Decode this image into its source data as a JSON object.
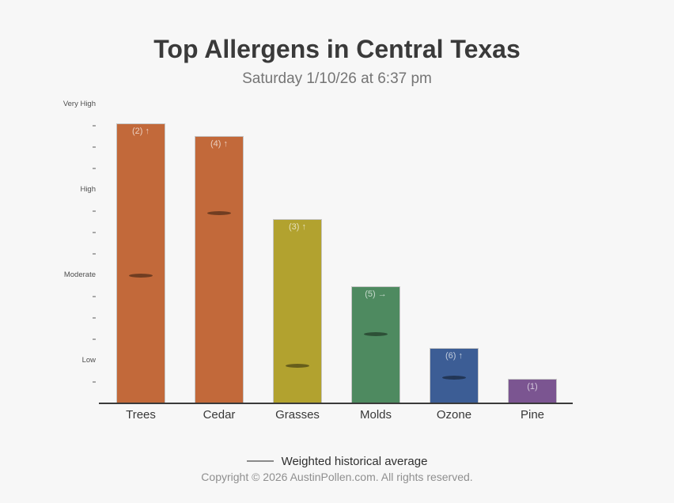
{
  "header": {
    "title": "Top Allergens in Central Texas",
    "subtitle": "Saturday 1/10/26 at 6:37 pm"
  },
  "legend": {
    "label": "Weighted historical average"
  },
  "footer": {
    "copyright": "Copyright © 2026 AustinPollen.com.  All rights reserved."
  },
  "chart_data": {
    "type": "bar",
    "categories": [
      "Trees",
      "Cedar",
      "Grasses",
      "Molds",
      "Ozone",
      "Pine"
    ],
    "values": [
      3.28,
      3.13,
      2.16,
      1.37,
      0.65,
      0.29
    ],
    "bar_labels": [
      "(2) ↑",
      "(4) ↑",
      "(3) ↑",
      "(5) →",
      "(6) ↑",
      "(1)"
    ],
    "weighted_historical_average": [
      1.5,
      2.23,
      0.44,
      0.81,
      0.3,
      null
    ],
    "bar_colors": [
      "#c2693a",
      "#c2693a",
      "#b2a22f",
      "#4e8a60",
      "#3c5d95",
      "#7b5591"
    ],
    "title": "Top Allergens in Central Texas",
    "subtitle": "Saturday 1/10/26 at 6:37 pm",
    "xlabel": "",
    "ylabel": "",
    "ytick_labels": [
      "Very High",
      "High",
      "Moderate",
      "Low"
    ],
    "ytick_values": [
      3.5,
      2.5,
      1.5,
      0.5
    ],
    "minor_tick_values": [
      3.25,
      3.0,
      2.75,
      2.25,
      2.0,
      1.75,
      1.25,
      1.0,
      0.75,
      0.25
    ],
    "ylim": [
      0,
      3.7
    ],
    "grid": false,
    "legend_position": "bottom",
    "legend_entries": [
      "Weighted historical average"
    ]
  }
}
